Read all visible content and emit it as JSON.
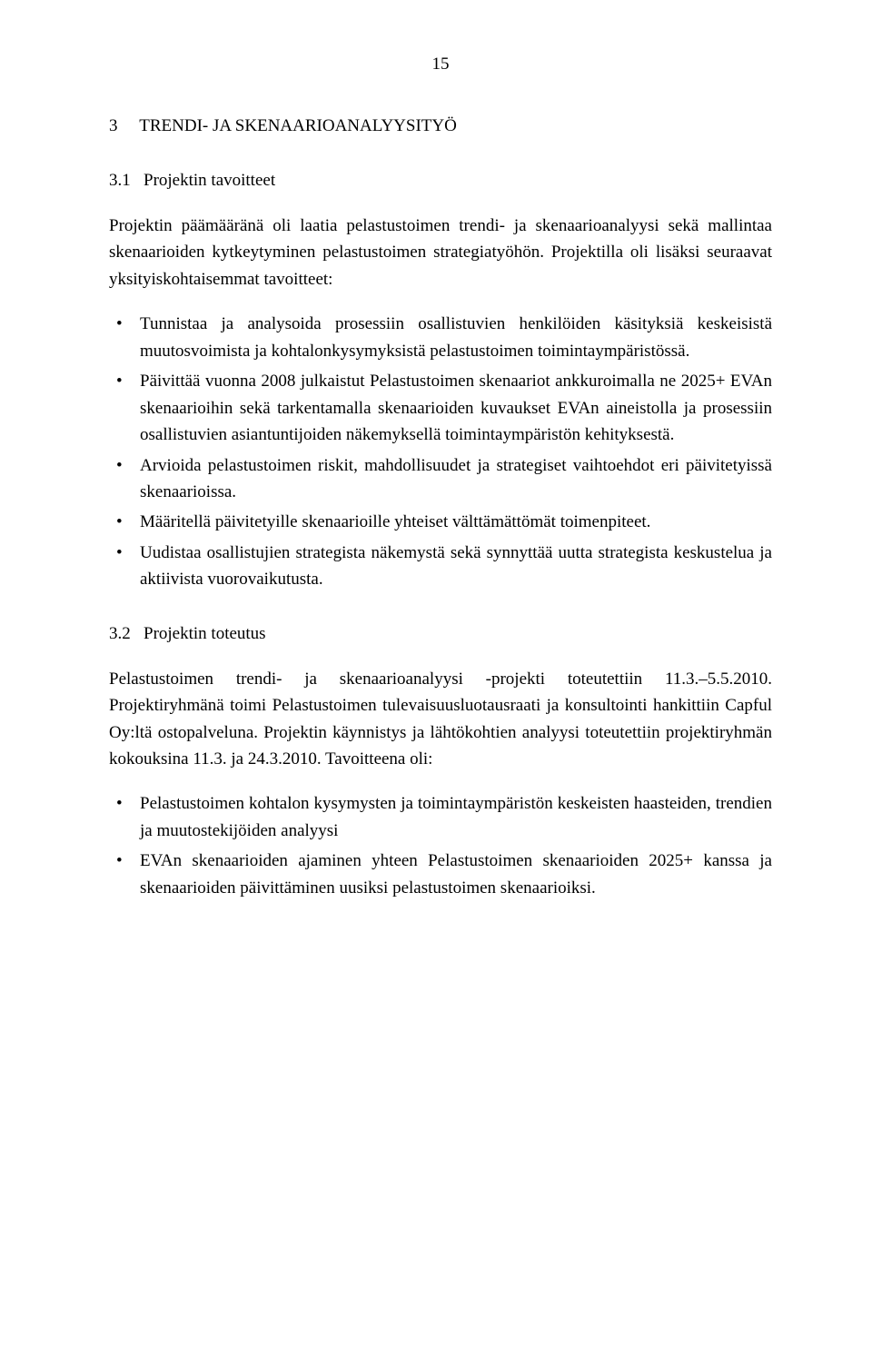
{
  "page_number": "15",
  "chapter": {
    "num": "3",
    "title": "TRENDI- JA SKENAARIOANALYYSITYÖ"
  },
  "s31": {
    "num": "3.1",
    "title": "Projektin tavoitteet",
    "intro": "Projektin päämääränä oli laatia pelastustoimen trendi- ja skenaarioanalyysi sekä mallintaa skenaarioiden kytkeytyminen pelastustoimen strategiatyöhön. Projektilla oli lisäksi seuraavat yksityiskohtaisemmat tavoitteet:",
    "items": [
      "Tunnistaa ja analysoida prosessiin osallistuvien henkilöiden käsityksiä keskeisistä muutosvoimista ja kohtalonkysymyksistä pelastustoimen toimintaympäristössä.",
      "Päivittää vuonna 2008 julkaistut Pelastustoimen skenaariot ankkuroimalla ne 2025+ EVAn skenaarioihin sekä tarkentamalla skenaarioiden kuvaukset EVAn aineistolla ja prosessiin osallistuvien asiantuntijoiden näkemyksellä toimintaympäristön kehityksestä.",
      "Arvioida pelastustoimen riskit, mahdollisuudet ja strategiset vaihtoehdot eri päivitetyissä skenaarioissa.",
      "Määritellä päivitetyille skenaarioille yhteiset välttämättömät toimenpiteet.",
      "Uudistaa osallistujien strategista näkemystä sekä synnyttää uutta strategista keskustelua ja aktiivista vuorovaikutusta."
    ]
  },
  "s32": {
    "num": "3.2",
    "title": "Projektin toteutus",
    "intro": "Pelastustoimen trendi- ja skenaarioanalyysi -projekti toteutettiin 11.3.–5.5.2010. Projektiryhmänä toimi Pelastustoimen tulevaisuusluotausraati ja konsultointi hankittiin Capful Oy:ltä ostopalveluna. Projektin käynnistys ja lähtökohtien analyysi toteutettiin projektiryhmän kokouksina 11.3. ja 24.3.2010. Tavoitteena oli:",
    "items": [
      "Pelastustoimen kohtalon kysymysten ja toimintaympäristön keskeisten haasteiden, trendien ja muutostekijöiden analyysi",
      "EVAn skenaarioiden ajaminen yhteen Pelastustoimen skenaarioiden 2025+ kanssa ja skenaarioiden päivittäminen uusiksi pelastustoimen skenaarioiksi."
    ]
  }
}
